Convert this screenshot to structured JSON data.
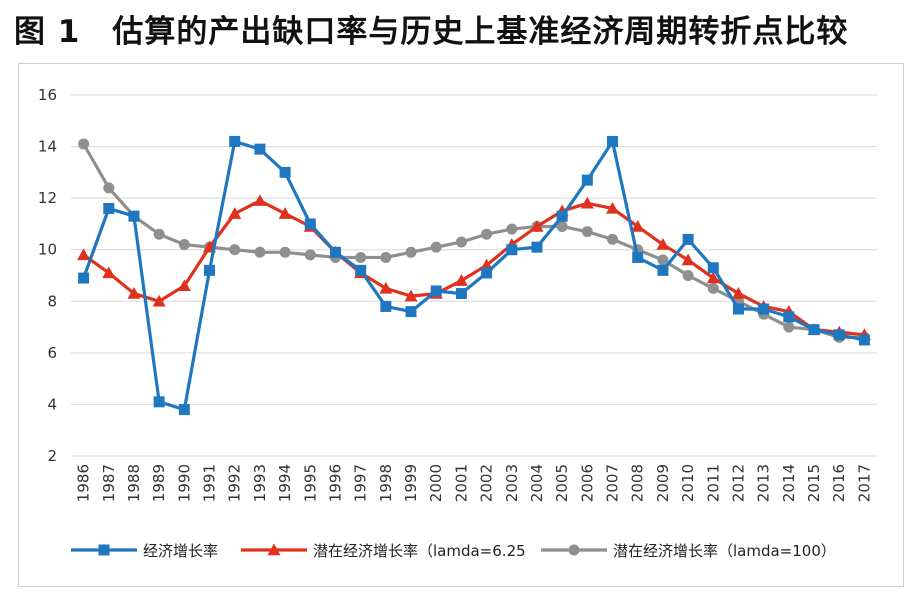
{
  "title": "图 1　估算的产出缺口率与历史上基准经济周期转折点比较",
  "chart_data": {
    "type": "line",
    "title": "图 1　估算的产出缺口率与历史上基准经济周期转折点比较",
    "xlabel": "",
    "ylabel": "",
    "ylim": [
      2,
      16
    ],
    "yticks": [
      2,
      4,
      6,
      8,
      10,
      12,
      14,
      16
    ],
    "grid": true,
    "legend_position": "bottom",
    "categories": [
      "1986",
      "1987",
      "1988",
      "1989",
      "1990",
      "1991",
      "1992",
      "1993",
      "1994",
      "1995",
      "1996",
      "1997",
      "1998",
      "1999",
      "2000",
      "2001",
      "2002",
      "2003",
      "2004",
      "2005",
      "2006",
      "2007",
      "2008",
      "2009",
      "2010",
      "2011",
      "2012",
      "2013",
      "2014",
      "2015",
      "2016",
      "2017"
    ],
    "series": [
      {
        "name": "经济增长率",
        "color": "#1f77c0",
        "marker": "square",
        "values": [
          8.9,
          11.6,
          11.3,
          4.1,
          3.8,
          9.2,
          14.2,
          13.9,
          13.0,
          11.0,
          9.9,
          9.2,
          7.8,
          7.6,
          8.4,
          8.3,
          9.1,
          10.0,
          10.1,
          11.3,
          12.7,
          14.2,
          9.7,
          9.2,
          10.4,
          9.3,
          7.7,
          7.7,
          7.4,
          6.9,
          6.7,
          6.5
        ]
      },
      {
        "name": "潜在经济增长率（lamda=6.25",
        "color": "#e0311f",
        "marker": "triangle",
        "values": [
          9.8,
          9.1,
          8.3,
          8.0,
          8.6,
          10.1,
          11.4,
          11.9,
          11.4,
          10.9,
          9.9,
          9.1,
          8.5,
          8.2,
          8.3,
          8.8,
          9.4,
          10.2,
          10.9,
          11.5,
          11.8,
          11.6,
          10.9,
          10.2,
          9.6,
          8.9,
          8.3,
          7.8,
          7.6,
          6.9,
          6.8,
          6.7
        ]
      },
      {
        "name": "潜在经济增长率（lamda=100）",
        "color": "#8f8f8f",
        "marker": "circle",
        "values": [
          14.1,
          12.4,
          11.3,
          10.6,
          10.2,
          10.1,
          10.0,
          9.9,
          9.9,
          9.8,
          9.7,
          9.7,
          9.7,
          9.9,
          10.1,
          10.3,
          10.6,
          10.8,
          10.9,
          10.9,
          10.7,
          10.4,
          10.0,
          9.6,
          9.0,
          8.5,
          8.0,
          7.5,
          7.0,
          6.9,
          6.6,
          6.6
        ]
      }
    ]
  }
}
